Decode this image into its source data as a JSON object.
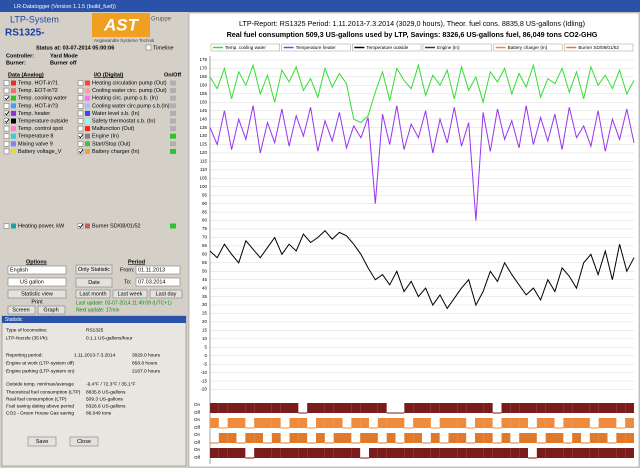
{
  "window": {
    "title": "LR-Datalogger (Version 1.1.5 (build_fuel))"
  },
  "header": {
    "system": "LTP-System",
    "unit": "RS1325-",
    "logo": "AST",
    "logo_suffix": "Gruppe",
    "logo_sub": "Angewandte Systeme Technik",
    "status": "Status at: 03-07-2014  05:00:06",
    "timeline": "Timeline",
    "controller_label": "Controller:",
    "controller": "Yard Mode",
    "burner_label": "Burner:",
    "burner": "Burner off"
  },
  "analog": {
    "title": "Data (Analog)",
    "items": [
      {
        "label": "Temp. HOT-in?1",
        "color": "#e03030",
        "checked": false
      },
      {
        "label": "Temp. EOT-in?2",
        "color": "#f07070",
        "checked": false
      },
      {
        "label": "Temp. cooling water",
        "color": "#30c030",
        "checked": true
      },
      {
        "label": "Temp. HOT-in?3",
        "color": "#40a0ff",
        "checked": false
      },
      {
        "label": "Temp. heater",
        "color": "#9030e0",
        "checked": true
      },
      {
        "label": "Temperature outside",
        "color": "#000000",
        "checked": true
      },
      {
        "label": "Temp. control spot",
        "color": "#ff80c0",
        "checked": false
      },
      {
        "label": "Temperature 8",
        "color": "#30d0d0",
        "checked": false
      },
      {
        "label": "Mixing valve 9",
        "color": "#8080ff",
        "checked": false
      },
      {
        "label": "Battery voltage_V",
        "color": "#e0e020",
        "checked": false
      },
      {
        "label": "Heating power, kW",
        "color": "#20a0a0",
        "checked": false
      }
    ]
  },
  "digital": {
    "title": "I/O (Digital)",
    "onoff": "On/Off",
    "items": [
      {
        "label": "Heating circulation pump (Out)",
        "color": "#ff4040",
        "checked": false
      },
      {
        "label": "Cooling water circ. pump (Out)",
        "color": "#ffa0a0",
        "checked": false
      },
      {
        "label": "Heating circ. pump s.b. (In)",
        "color": "#ff70ff",
        "checked": false
      },
      {
        "label": "Cooling water circ.pump s.b.(In)",
        "color": "#a0c0ff",
        "checked": false
      },
      {
        "label": "Water level s.b. (In)",
        "color": "#4040ff",
        "checked": false
      },
      {
        "label": "Safety thermostat s.b. (In)",
        "color": "#80ffff",
        "checked": false
      },
      {
        "label": "Malfunction (Out)",
        "color": "#ff2020",
        "checked": false
      },
      {
        "label": "Engine (In)",
        "color": "#808080",
        "checked": true
      },
      {
        "label": "Start/Stop (Out)",
        "color": "#40c040",
        "checked": false
      },
      {
        "label": "Battery charger (In)",
        "color": "#f0a040",
        "checked": true
      },
      {
        "label": "Burner SD/08/01/52",
        "color": "#c06060",
        "checked": true
      }
    ]
  },
  "options": {
    "title": "Options",
    "language": "English",
    "unit": "US gallon",
    "only_statistic": "Only Statistic",
    "date": "Date",
    "period": "Period",
    "from_label": "From:",
    "from": "01.11.2013",
    "to_label": "To:",
    "to": "07.03.2014",
    "statistic_view": "Statistic view",
    "print": "Print",
    "screen": "Screen",
    "graph": "Graph",
    "last_month": "Last month",
    "last_week": "Last week",
    "last_day": "Last day",
    "last_update": "Last update: 03-07-2014 11:49:09 (UTC+1)",
    "next_update": "Next update: 17min"
  },
  "statistic": {
    "title": "Statistic",
    "rows": [
      [
        "Type of locomotive:",
        "RS1325"
      ],
      [
        "LTP-Nozzle (35 l/h):",
        "0.1.1 US-gallons/hour"
      ],
      [
        "Reporting period:",
        "1.11.2013-7.3.2014",
        "3029.0 hours"
      ],
      [
        "Engine at work (LTP-system off)",
        "858.8 hours"
      ],
      [
        "Engine parking (LTP-system on)",
        "2167.0 hours"
      ],
      [
        "Outside temp. min/max/average",
        "-9.4°F / 72.3°F / 35.1°F"
      ],
      [
        "Theoretical fuel consumption (LTP)",
        "8835.8 US-gallons"
      ],
      [
        "Real fuel consumption (LTP)",
        "509.3 US-gallons"
      ],
      [
        "Fuel saving dating above period",
        "8326.6 US-gallons"
      ],
      [
        "CO2 - Green House Gas saving",
        "86.049 tons"
      ]
    ],
    "save": "Save",
    "close": "Close"
  },
  "chart": {
    "title_line1": "LTP-Report: RS1325     Period: 1.11.2013-7.3.2014 (3029,0 hours), Theor. fuel cons. 8835,8 US-gallons (Idling)",
    "title_line2": "Real fuel consumption 509,3 US-gallons used by LTP, Savings: 8326,6 US-gallons fuel, 86,049 tons CO2-GHG",
    "ylim": [
      -25,
      175
    ],
    "yticks": [
      175,
      170,
      165,
      160,
      155,
      150,
      145,
      140,
      135,
      130,
      125,
      120,
      115,
      110,
      105,
      100,
      95,
      90,
      85,
      80,
      75,
      70,
      65,
      60,
      55,
      50,
      45,
      40,
      35,
      30,
      25,
      20,
      15,
      10,
      5,
      0,
      -5,
      -10,
      -15,
      -20
    ],
    "grid": true,
    "state_labels": [
      "On",
      "Off"
    ],
    "series": [
      {
        "name": "Temp. cooling water",
        "color": "#33dd33",
        "values": [
          165,
          158,
          170,
          152,
          168,
          160,
          172,
          155,
          166,
          150,
          169,
          162,
          171,
          157,
          164,
          153,
          170,
          159,
          167,
          161,
          140,
          138,
          142,
          156,
          168,
          151,
          170,
          163,
          158,
          172,
          154,
          166,
          160,
          169,
          152,
          171,
          157,
          165,
          150,
          168,
          162,
          170,
          155,
          167,
          159,
          172,
          153,
          164,
          161,
          170,
          156,
          168,
          152,
          171,
          160,
          166,
          158,
          169,
          155,
          163
        ]
      },
      {
        "name": "Temperature heater",
        "color": "#9933ee",
        "values": [
          135,
          125,
          145,
          122,
          140,
          128,
          148,
          120,
          138,
          126,
          146,
          124,
          142,
          130,
          147,
          121,
          139,
          127,
          144,
          123,
          136,
          129,
          141,
          90,
          143,
          125,
          148,
          122,
          137,
          129,
          145,
          120,
          140,
          126,
          147,
          124,
          138,
          80,
          144,
          121,
          146,
          128,
          139,
          123,
          148,
          125,
          141,
          127,
          143,
          122,
          147,
          129,
          136,
          124,
          145,
          121,
          140,
          128,
          146,
          126
        ]
      },
      {
        "name": "Temperature outside",
        "color": "#000000",
        "values": [
          62,
          58,
          66,
          60,
          55,
          68,
          63,
          58,
          64,
          70,
          60,
          66,
          62,
          72,
          67,
          70,
          74,
          69,
          73,
          71,
          66,
          60,
          52,
          45,
          48,
          42,
          50,
          38,
          44,
          35,
          40,
          30,
          36,
          28,
          34,
          40,
          45,
          30,
          38,
          50,
          44,
          55,
          48,
          42,
          36,
          40,
          33,
          45,
          38,
          52,
          47,
          40,
          55,
          60,
          48,
          62,
          45,
          66,
          50,
          58
        ]
      }
    ],
    "tracks": [
      {
        "name": "Engine (In)",
        "color": "#7a1c1c",
        "values": [
          1,
          1,
          1,
          1,
          1,
          1,
          1,
          1,
          1,
          1,
          0,
          1,
          1,
          1,
          1,
          1,
          1,
          1,
          1,
          1,
          0,
          0,
          1,
          1,
          1,
          1,
          1,
          1,
          1,
          1,
          1,
          1,
          0,
          1,
          1,
          1,
          1,
          1,
          1,
          1,
          1,
          1,
          1,
          1,
          1,
          1,
          1,
          1
        ]
      },
      {
        "name": "Battery charger (In)",
        "color": "#f08a3c",
        "values": [
          1,
          0,
          1,
          1,
          0,
          1,
          1,
          1,
          0,
          1,
          1,
          0,
          1,
          1,
          1,
          0,
          1,
          1,
          0,
          1,
          1,
          1,
          0,
          1,
          1,
          0,
          1,
          1,
          1,
          0,
          1,
          1,
          0,
          1,
          1,
          1,
          0,
          1,
          1,
          0,
          1,
          1,
          1,
          0,
          1,
          1,
          0,
          1
        ]
      },
      {
        "name": "Burner SD/08/01/52",
        "color": "#e07a2a",
        "values": [
          0,
          1,
          1,
          0,
          1,
          1,
          0,
          1,
          0,
          1,
          1,
          0,
          1,
          0,
          1,
          1,
          0,
          1,
          1,
          0,
          1,
          0,
          1,
          1,
          0,
          1,
          0,
          1,
          1,
          0,
          1,
          1,
          0,
          1,
          0,
          1,
          1,
          0,
          1,
          1,
          0,
          1,
          0,
          1,
          1,
          0,
          1,
          1
        ]
      },
      {
        "color": "#7a1c1c",
        "values": [
          1,
          1,
          1,
          1,
          0,
          1,
          1,
          1,
          1,
          1,
          1,
          1,
          1,
          1,
          1,
          1,
          1,
          0,
          1,
          1,
          1,
          1,
          1,
          1,
          1,
          1,
          1,
          1,
          1,
          1,
          1,
          1,
          1,
          1,
          1,
          1,
          0,
          1,
          1,
          1,
          1,
          1,
          1,
          1,
          1,
          1,
          1,
          1
        ]
      }
    ]
  }
}
